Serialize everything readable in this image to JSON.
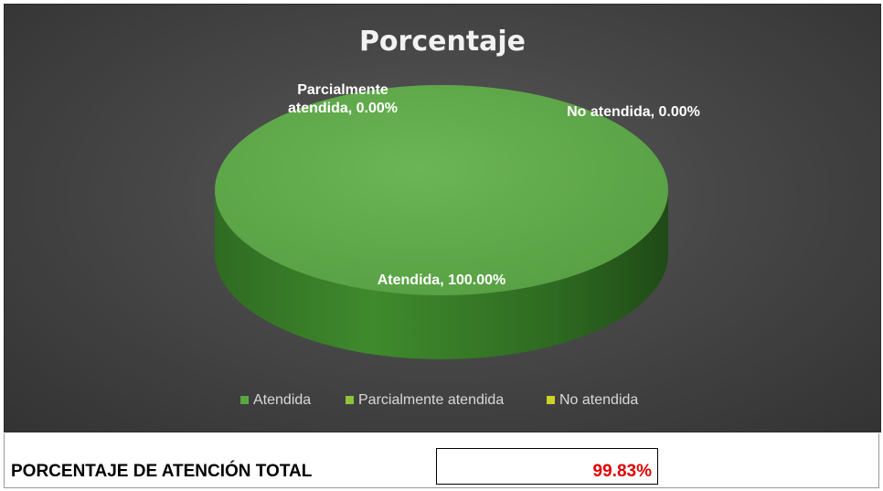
{
  "chart_data": {
    "type": "pie",
    "title": "Porcentaje",
    "categories": [
      "Atendida",
      "Parcialmente atendida",
      "No atendida"
    ],
    "values": [
      100.0,
      0.0,
      0.0
    ],
    "data_labels": [
      "Atendida, 100.00%",
      "Parcialmente atendida, 0.00%",
      "No atendida, 0.00%"
    ],
    "colors": [
      "#5aa645",
      "#8cc43c",
      "#c9d42a"
    ],
    "legend": {
      "position": "bottom",
      "entries": [
        "Atendida",
        "Parcialmente atendida",
        "No atendida"
      ]
    },
    "style": "3d"
  },
  "summary": {
    "label": "PORCENTAJE DE ATENCIÓN TOTAL",
    "value": "99.83%",
    "value_color": "#e00000"
  }
}
